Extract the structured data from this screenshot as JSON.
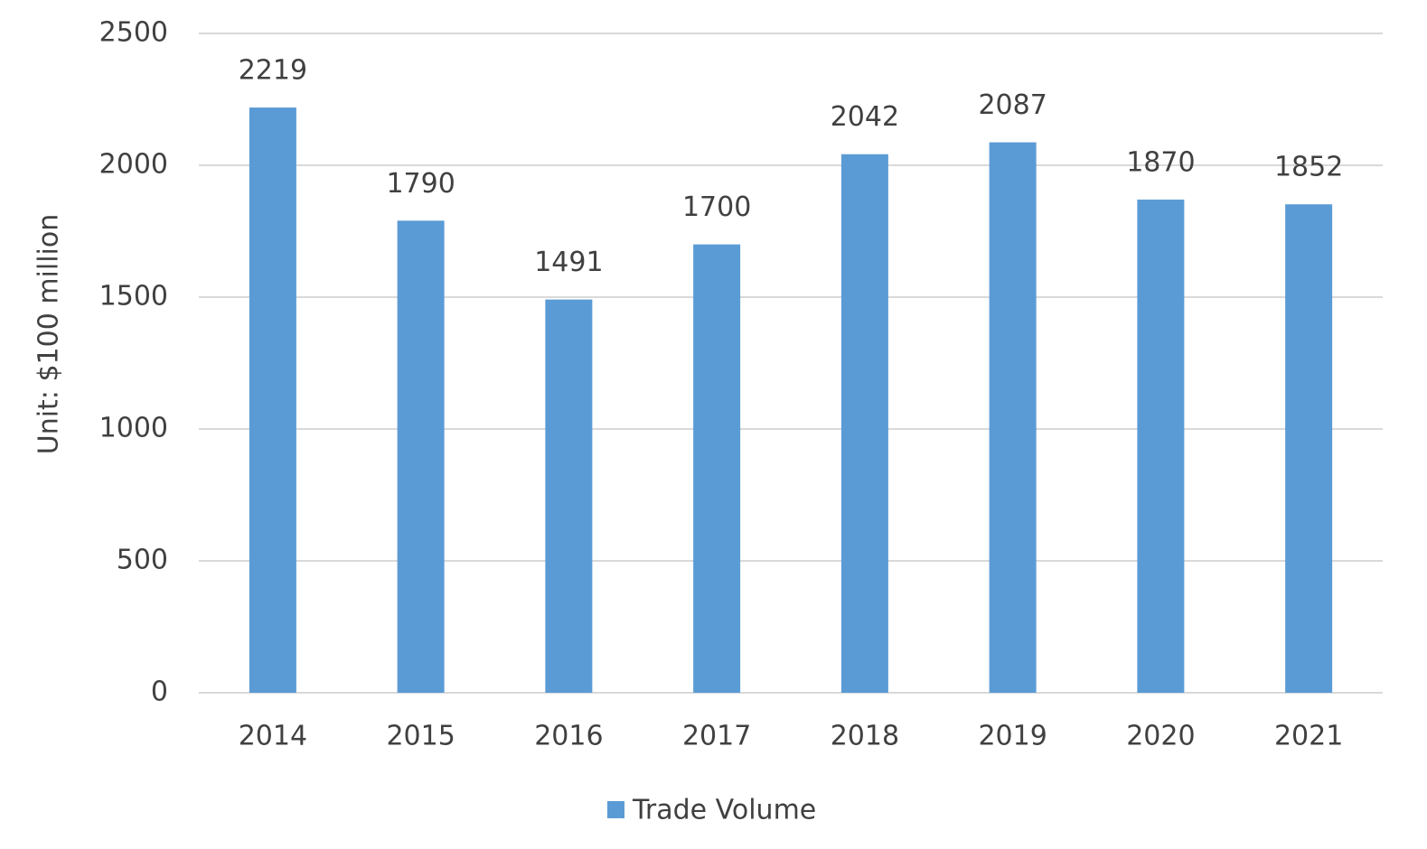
{
  "chart_data": {
    "type": "bar",
    "y_label": "Unit: $100 million",
    "categories": [
      "2014",
      "2015",
      "2016",
      "2017",
      "2018",
      "2019",
      "2020",
      "2021"
    ],
    "series": [
      {
        "name": "Trade Volume",
        "color": "#5b9bd5",
        "values": [
          2219,
          1790,
          1491,
          1700,
          2042,
          2087,
          1870,
          1852
        ]
      }
    ],
    "ylim": [
      0,
      2500
    ],
    "yticks": [
      0,
      500,
      1000,
      1500,
      2000,
      2500
    ],
    "grid": true,
    "legend": "bottom"
  }
}
